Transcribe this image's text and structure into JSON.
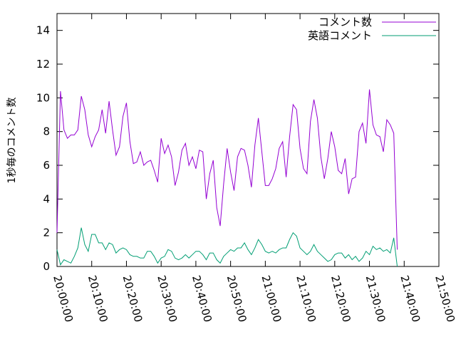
{
  "chart_data": {
    "type": "line",
    "title": "",
    "xlabel": "",
    "ylabel": "1秒毎のコメント数",
    "x_range": [
      "20:00:00",
      "21:50:00"
    ],
    "xticks": [
      "20:00:00",
      "20:10:00",
      "20:20:00",
      "20:30:00",
      "20:40:00",
      "20:50:00",
      "21:00:00",
      "21:10:00",
      "21:20:00",
      "21:30:00",
      "21:40:00",
      "21:50:00"
    ],
    "ylim": [
      0,
      15
    ],
    "yticks": [
      0,
      2,
      4,
      6,
      8,
      10,
      12,
      14
    ],
    "grid": false,
    "legend": "top-right",
    "sample_interval_minutes": 1,
    "x_start": "20:00:00",
    "series": [
      {
        "name": "コメント数",
        "color": "#9400d3",
        "values": [
          2.0,
          10.4,
          8.1,
          7.6,
          7.8,
          7.8,
          8.1,
          10.1,
          9.3,
          7.8,
          7.1,
          7.7,
          8.1,
          9.3,
          7.9,
          9.8,
          8.1,
          6.6,
          7.1,
          8.9,
          9.7,
          7.4,
          6.1,
          6.2,
          6.8,
          6.0,
          6.2,
          6.3,
          5.7,
          5.0,
          7.6,
          6.7,
          7.2,
          6.5,
          4.8,
          5.6,
          6.9,
          7.3,
          6.0,
          6.5,
          5.8,
          6.9,
          6.8,
          4.0,
          5.5,
          6.3,
          3.5,
          2.4,
          4.9,
          7.0,
          5.6,
          4.5,
          6.5,
          7.0,
          6.9,
          6.0,
          4.7,
          7.2,
          8.8,
          6.8,
          4.8,
          4.8,
          5.2,
          5.8,
          7.0,
          7.4,
          5.3,
          7.7,
          9.6,
          9.3,
          7.0,
          5.8,
          5.5,
          8.6,
          9.9,
          8.8,
          6.5,
          5.2,
          6.4,
          8.0,
          7.1,
          5.7,
          5.5,
          6.4,
          4.3,
          5.2,
          5.3,
          8.0,
          8.5,
          7.3,
          10.5,
          8.4,
          7.8,
          7.7,
          6.8,
          8.7,
          8.4,
          7.9,
          1.0
        ]
      },
      {
        "name": "英語コメント",
        "color": "#009e73",
        "values": [
          1.0,
          0.1,
          0.4,
          0.3,
          0.2,
          0.6,
          1.1,
          2.3,
          1.3,
          0.9,
          1.9,
          1.9,
          1.4,
          1.4,
          1.0,
          1.4,
          1.3,
          0.8,
          1.0,
          1.1,
          1.0,
          0.7,
          0.6,
          0.6,
          0.5,
          0.5,
          0.9,
          0.9,
          0.6,
          0.2,
          0.5,
          0.6,
          1.0,
          0.9,
          0.5,
          0.4,
          0.5,
          0.7,
          0.5,
          0.7,
          0.9,
          0.9,
          0.7,
          0.4,
          0.8,
          0.8,
          0.4,
          0.2,
          0.6,
          0.8,
          1.0,
          0.9,
          1.1,
          1.1,
          1.4,
          1.0,
          0.7,
          1.1,
          1.6,
          1.3,
          0.9,
          0.8,
          0.9,
          0.8,
          1.0,
          1.1,
          1.1,
          1.6,
          2.0,
          1.8,
          1.1,
          0.9,
          0.7,
          0.9,
          1.3,
          0.9,
          0.7,
          0.5,
          0.3,
          0.4,
          0.7,
          0.8,
          0.8,
          0.5,
          0.7,
          0.4,
          0.6,
          0.3,
          0.5,
          0.9,
          0.7,
          1.2,
          1.0,
          1.1,
          0.9,
          1.0,
          0.8,
          1.7,
          0.0
        ]
      }
    ]
  }
}
